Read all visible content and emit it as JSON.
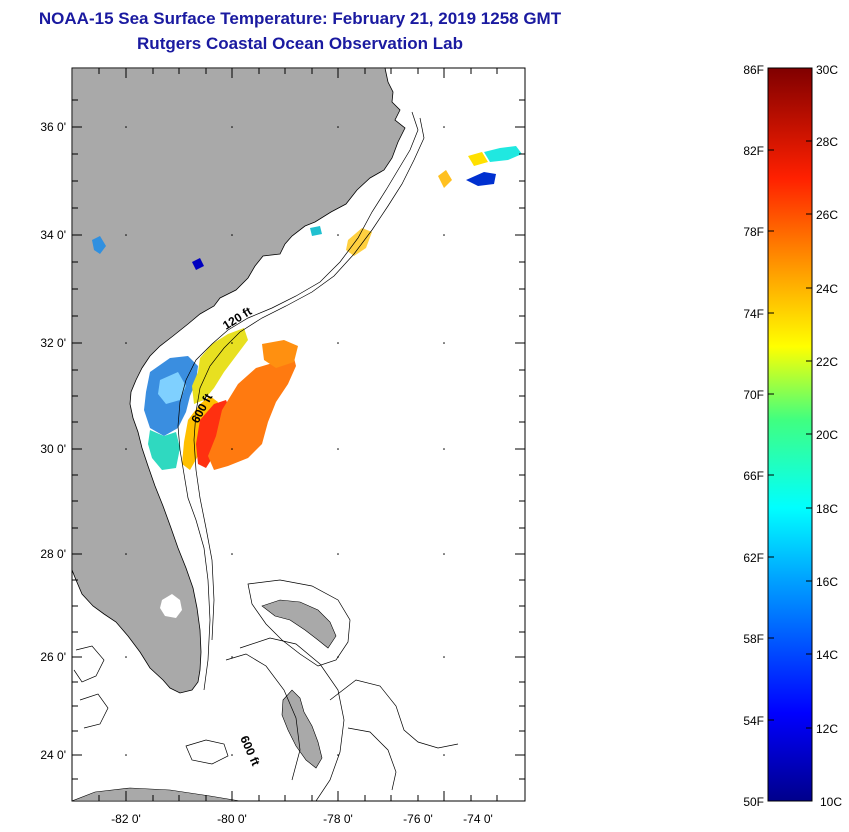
{
  "header": {
    "title": "NOAA-15 Sea Surface Temperature:  February 21, 2019 1258 GMT",
    "subtitle": "Rutgers Coastal Ocean Observation Lab"
  },
  "map": {
    "lat_labels": [
      "36 0'",
      "34 0'",
      "32 0'",
      "30 0'",
      "28 0'",
      "26 0'",
      "24 0'"
    ],
    "lon_labels": [
      "-82 0'",
      "-80 0'",
      "-78 0'",
      "-76 0'",
      "-74 0'"
    ],
    "contour_labels": [
      "120 ft",
      "600 ft",
      "600 ft"
    ]
  },
  "colorbar": {
    "fahrenheit": [
      "86F",
      "82F",
      "78F",
      "74F",
      "70F",
      "66F",
      "62F",
      "58F",
      "54F",
      "50F"
    ],
    "celsius": [
      "30C",
      "28C",
      "26C",
      "24C",
      "22C",
      "20C",
      "18C",
      "16C",
      "14C",
      "12C",
      "10C"
    ]
  },
  "colors": {
    "title": "#1a1aa0",
    "land": "#a9a9a9"
  }
}
